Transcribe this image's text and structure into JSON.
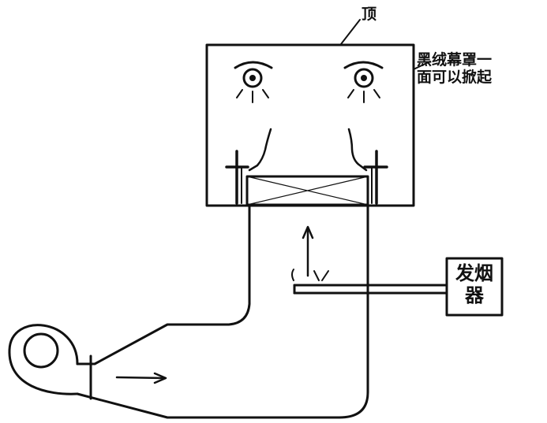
{
  "labels": {
    "top": "顶",
    "curtain_line1": "黑绒幕罩一",
    "curtain_line2": "面可以掀起",
    "smoke_line1": "发烟",
    "smoke_line2": "器"
  },
  "colors": {
    "ink": "#111111",
    "paper": "#ffffff"
  }
}
